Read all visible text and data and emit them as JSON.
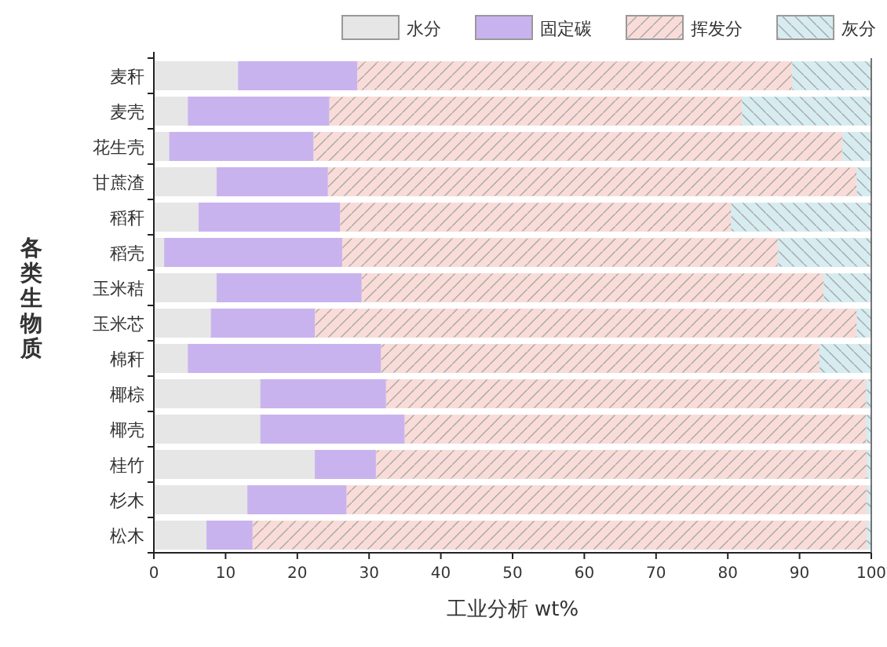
{
  "chart_data": {
    "type": "bar",
    "orientation": "horizontal",
    "stacked": true,
    "xlabel": "工业分析 wt%",
    "ylabel": "各类生物质",
    "legend": "top",
    "grid": false,
    "categories": [
      "麦秆",
      "麦壳",
      "花生壳",
      "甘蔗渣",
      "稻秆",
      "稻壳",
      "玉米秸",
      "玉米芯",
      "棉秆",
      "椰棕",
      "椰壳",
      "桂竹",
      "杉木",
      "松木"
    ],
    "series": [
      {
        "name": "水分",
        "color": "#e6e6e6",
        "values": [
          11.8,
          4.8,
          2.2,
          8.8,
          6.3,
          1.5,
          8.8,
          8.0,
          4.8,
          14.9,
          14.9,
          22.5,
          13.1,
          7.4
        ]
      },
      {
        "name": "固定碳",
        "color": "#c9b3ee",
        "values": [
          16.6,
          19.7,
          20.1,
          15.5,
          19.7,
          24.8,
          20.2,
          14.5,
          26.9,
          17.5,
          20.1,
          8.5,
          13.8,
          6.4
        ]
      },
      {
        "name": "挥发分",
        "color": "#f9dcd8",
        "values": [
          60.6,
          57.5,
          73.7,
          73.7,
          54.5,
          60.7,
          64.4,
          75.5,
          61.1,
          66.9,
          64.3,
          68.4,
          72.5,
          85.6
        ]
      },
      {
        "name": "灰分",
        "color": "#d7ecf0",
        "values": [
          11.0,
          18.0,
          4.0,
          2.0,
          19.5,
          13.0,
          6.6,
          2.0,
          7.2,
          0.7,
          0.7,
          0.6,
          0.6,
          0.6
        ]
      }
    ],
    "xlim": [
      0,
      100
    ],
    "xticks": [
      0,
      10,
      20,
      30,
      40,
      50,
      60,
      70,
      80,
      90,
      100
    ]
  }
}
